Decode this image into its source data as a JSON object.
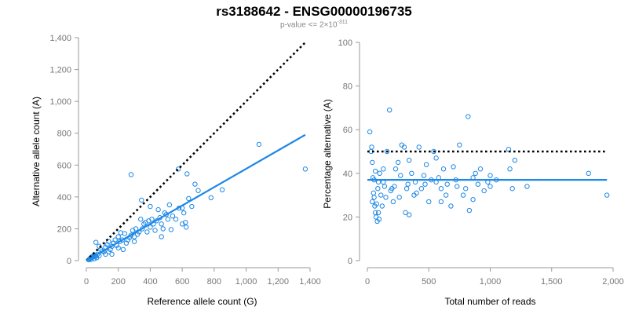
{
  "header": {
    "title": "rs3188642 - ENSG00000196735",
    "subtitle_prefix": "p-value <= 2×10",
    "subtitle_exponent": "-311"
  },
  "colors": {
    "points": "#1e88e5",
    "fit_line": "#1e88e5",
    "reference_line": "#000000",
    "axis": "#999999"
  },
  "chart_data": [
    {
      "type": "scatter",
      "xlabel": "Reference allele count (G)",
      "ylabel": "Alternative allele count (A)",
      "xlim": [
        0,
        1400
      ],
      "ylim": [
        0,
        1400
      ],
      "xticks": [
        0,
        200,
        400,
        600,
        800,
        1000,
        1200,
        1400
      ],
      "yticks": [
        0,
        200,
        400,
        600,
        800,
        1000,
        1200,
        1400
      ],
      "xtick_labels": [
        "0",
        "200",
        "400",
        "600",
        "800",
        "1,000",
        "1,200",
        "1,400"
      ],
      "ytick_labels": [
        "0",
        "200",
        "400",
        "600",
        "800",
        "1,000",
        "1,200",
        "1,400"
      ],
      "grid": false,
      "reference_line": {
        "x": [
          0,
          1370
        ],
        "y": [
          0,
          1370
        ],
        "style": "dotted"
      },
      "fit_line": {
        "x": [
          0,
          1370
        ],
        "y": [
          0,
          790
        ]
      },
      "points": [
        [
          20,
          10
        ],
        [
          25,
          15
        ],
        [
          30,
          20
        ],
        [
          35,
          25
        ],
        [
          40,
          22
        ],
        [
          45,
          30
        ],
        [
          50,
          25
        ],
        [
          55,
          35
        ],
        [
          60,
          28
        ],
        [
          70,
          40
        ],
        [
          80,
          30
        ],
        [
          15,
          5
        ],
        [
          30,
          8
        ],
        [
          50,
          12
        ],
        [
          65,
          18
        ],
        [
          60,
          115
        ],
        [
          80,
          90
        ],
        [
          90,
          70
        ],
        [
          100,
          60
        ],
        [
          110,
          55
        ],
        [
          120,
          85
        ],
        [
          130,
          100
        ],
        [
          140,
          120
        ],
        [
          150,
          70
        ],
        [
          160,
          90
        ],
        [
          170,
          110
        ],
        [
          180,
          130
        ],
        [
          190,
          95
        ],
        [
          200,
          150
        ],
        [
          210,
          120
        ],
        [
          215,
          175
        ],
        [
          225,
          130
        ],
        [
          240,
          170
        ],
        [
          250,
          110
        ],
        [
          260,
          130
        ],
        [
          270,
          145
        ],
        [
          280,
          160
        ],
        [
          280,
          540
        ],
        [
          290,
          190
        ],
        [
          300,
          150
        ],
        [
          310,
          200
        ],
        [
          320,
          165
        ],
        [
          340,
          260
        ],
        [
          345,
          380
        ],
        [
          350,
          200
        ],
        [
          360,
          230
        ],
        [
          370,
          240
        ],
        [
          380,
          180
        ],
        [
          390,
          250
        ],
        [
          400,
          210
        ],
        [
          410,
          260
        ],
        [
          420,
          230
        ],
        [
          440,
          250
        ],
        [
          450,
          320
        ],
        [
          460,
          270
        ],
        [
          470,
          230
        ],
        [
          480,
          200
        ],
        [
          490,
          300
        ],
        [
          500,
          290
        ],
        [
          510,
          260
        ],
        [
          520,
          350
        ],
        [
          540,
          280
        ],
        [
          560,
          260
        ],
        [
          575,
          575
        ],
        [
          580,
          330
        ],
        [
          600,
          330
        ],
        [
          610,
          300
        ],
        [
          620,
          240
        ],
        [
          625,
          210
        ],
        [
          630,
          545
        ],
        [
          640,
          390
        ],
        [
          660,
          340
        ],
        [
          680,
          480
        ],
        [
          700,
          440
        ],
        [
          780,
          395
        ],
        [
          850,
          445
        ],
        [
          1080,
          730
        ],
        [
          1370,
          575
        ],
        [
          120,
          40
        ],
        [
          140,
          55
        ],
        [
          160,
          40
        ],
        [
          200,
          80
        ],
        [
          230,
          70
        ],
        [
          300,
          120
        ],
        [
          330,
          180
        ],
        [
          400,
          340
        ],
        [
          430,
          190
        ],
        [
          470,
          150
        ],
        [
          530,
          195
        ],
        [
          600,
          230
        ]
      ]
    },
    {
      "type": "scatter",
      "xlabel": "Total number of reads",
      "ylabel": "Percentage alternative (A)",
      "xlim": [
        0,
        2000
      ],
      "ylim": [
        0,
        100
      ],
      "xticks": [
        0,
        500,
        1000,
        1500,
        2000
      ],
      "yticks": [
        0,
        20,
        40,
        60,
        80,
        100
      ],
      "xtick_labels": [
        "0",
        "500",
        "1,000",
        "1,500",
        "2,000"
      ],
      "ytick_labels": [
        "0",
        "20",
        "40",
        "60",
        "80",
        "100"
      ],
      "grid": false,
      "reference_line": {
        "x": [
          0,
          1950
        ],
        "y": [
          50,
          50
        ],
        "style": "dotted"
      },
      "fit_line": {
        "x": [
          0,
          1950
        ],
        "y": [
          37,
          37
        ]
      },
      "points": [
        [
          20,
          59
        ],
        [
          30,
          50
        ],
        [
          35,
          52
        ],
        [
          40,
          45
        ],
        [
          45,
          38
        ],
        [
          50,
          31
        ],
        [
          55,
          29
        ],
        [
          60,
          25
        ],
        [
          65,
          22
        ],
        [
          70,
          20
        ],
        [
          75,
          26
        ],
        [
          80,
          18
        ],
        [
          85,
          33
        ],
        [
          90,
          36
        ],
        [
          95,
          19
        ],
        [
          100,
          40
        ],
        [
          110,
          30
        ],
        [
          120,
          25
        ],
        [
          130,
          36
        ],
        [
          140,
          34
        ],
        [
          150,
          29
        ],
        [
          160,
          50
        ],
        [
          180,
          69
        ],
        [
          190,
          32
        ],
        [
          200,
          33
        ],
        [
          210,
          27
        ],
        [
          230,
          42
        ],
        [
          250,
          45
        ],
        [
          270,
          39
        ],
        [
          280,
          53
        ],
        [
          300,
          52
        ],
        [
          310,
          22
        ],
        [
          320,
          33
        ],
        [
          330,
          35
        ],
        [
          340,
          21
        ],
        [
          360,
          40
        ],
        [
          380,
          30
        ],
        [
          390,
          36
        ],
        [
          400,
          31
        ],
        [
          420,
          52
        ],
        [
          440,
          33
        ],
        [
          460,
          39
        ],
        [
          480,
          44
        ],
        [
          500,
          27
        ],
        [
          520,
          37
        ],
        [
          540,
          50
        ],
        [
          560,
          36
        ],
        [
          580,
          38
        ],
        [
          600,
          33
        ],
        [
          620,
          42
        ],
        [
          650,
          35
        ],
        [
          680,
          25
        ],
        [
          700,
          43
        ],
        [
          720,
          37
        ],
        [
          750,
          53
        ],
        [
          780,
          30
        ],
        [
          800,
          33
        ],
        [
          820,
          66
        ],
        [
          830,
          23
        ],
        [
          860,
          28
        ],
        [
          880,
          40
        ],
        [
          900,
          35
        ],
        [
          920,
          42
        ],
        [
          950,
          32
        ],
        [
          980,
          36
        ],
        [
          1000,
          39
        ],
        [
          1050,
          37
        ],
        [
          1150,
          51
        ],
        [
          1160,
          42
        ],
        [
          1180,
          33
        ],
        [
          1200,
          46
        ],
        [
          1300,
          34
        ],
        [
          1800,
          40
        ],
        [
          1950,
          30
        ],
        [
          40,
          27
        ],
        [
          55,
          37
        ],
        [
          65,
          41
        ],
        [
          90,
          22
        ],
        [
          130,
          42
        ],
        [
          220,
          34
        ],
        [
          260,
          29
        ],
        [
          340,
          46
        ],
        [
          470,
          35
        ],
        [
          560,
          47
        ],
        [
          600,
          27
        ],
        [
          640,
          30
        ],
        [
          730,
          34
        ],
        [
          860,
          38
        ],
        [
          1000,
          34
        ]
      ]
    }
  ]
}
